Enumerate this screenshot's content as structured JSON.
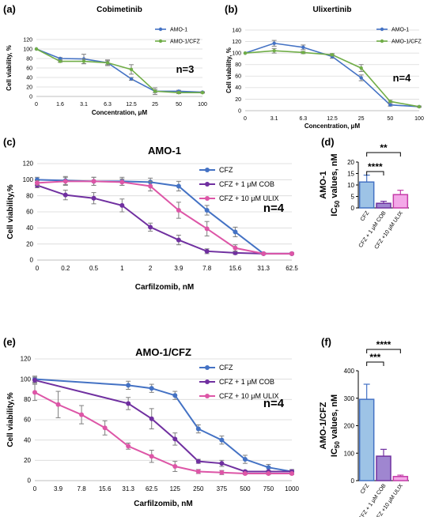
{
  "panels": [
    {
      "label": "(a)"
    },
    {
      "label": "(b)"
    },
    {
      "label": "(c)"
    },
    {
      "label": "(d)"
    },
    {
      "label": "(e)"
    },
    {
      "label": "(f)"
    }
  ],
  "chart_data": [
    {
      "type": "line",
      "title": "Cobimetinib",
      "xlabel": "Concentration, μM",
      "ylabel": "Cell viability, %",
      "categories": [
        "0",
        "1.6",
        "3.1",
        "6.3",
        "12.5",
        "25",
        "50",
        "100"
      ],
      "ylim": [
        0,
        120
      ],
      "yticks": [
        0,
        20,
        40,
        60,
        80,
        100,
        120
      ],
      "annotation": "n=3",
      "legend": "top-right",
      "series": [
        {
          "name": "AMO-1",
          "color": "#4472c4",
          "values": [
            100,
            80,
            79,
            71,
            37,
            11,
            11,
            9
          ],
          "err": [
            0,
            2,
            10,
            4,
            3,
            3,
            2,
            1
          ]
        },
        {
          "name": "AMO-1/CFZ",
          "color": "#70ad47",
          "values": [
            100,
            74,
            74,
            71,
            57,
            11,
            8,
            8
          ],
          "err": [
            0,
            2,
            5,
            6,
            10,
            7,
            2,
            1
          ]
        }
      ]
    },
    {
      "type": "line",
      "title": "Ulixertinib",
      "xlabel": "Concentration, μM",
      "ylabel": "Cell viability, %",
      "categories": [
        "0",
        "3.1",
        "6.3",
        "12.5",
        "25",
        "50",
        "100"
      ],
      "ylim": [
        0,
        140
      ],
      "yticks": [
        0,
        20,
        40,
        60,
        80,
        100,
        120,
        140
      ],
      "annotation": "n=4",
      "legend": "top-right",
      "series": [
        {
          "name": "AMO-1",
          "color": "#4472c4",
          "values": [
            100,
            117,
            110,
            94,
            57,
            10,
            7
          ],
          "err": [
            0,
            5,
            4,
            3,
            5,
            2,
            1
          ]
        },
        {
          "name": "AMO-1/CFZ",
          "color": "#70ad47",
          "values": [
            100,
            104,
            101,
            97,
            74,
            16,
            7
          ],
          "err": [
            0,
            4,
            2,
            2,
            6,
            2,
            1
          ]
        }
      ]
    },
    {
      "type": "line",
      "title": "AMO-1",
      "xlabel": "Carfilzomib, nM",
      "ylabel": "Cell viability,%",
      "categories": [
        "0",
        "0.2",
        "0.5",
        "1",
        "2",
        "3.9",
        "7.8",
        "15.6",
        "31.3",
        "62.5"
      ],
      "ylim": [
        0,
        120
      ],
      "yticks": [
        0,
        20,
        40,
        60,
        80,
        100,
        120
      ],
      "annotation": "n=4",
      "legend": "top-right",
      "series": [
        {
          "name": "CFZ",
          "color": "#4472c4",
          "values": [
            100,
            99,
            98,
            98,
            97,
            92,
            62,
            35,
            8,
            8
          ],
          "err": [
            3,
            5,
            5,
            5,
            5,
            6,
            6,
            6,
            1,
            1
          ]
        },
        {
          "name": "CFZ + 1 μM COB",
          "color": "#7030a0",
          "values": [
            93,
            81,
            77,
            68,
            41,
            25,
            11,
            9,
            8,
            8
          ],
          "err": [
            3,
            6,
            7,
            8,
            5,
            6,
            3,
            2,
            1,
            1
          ]
        },
        {
          "name": "CFZ + 10 μM ULIX",
          "color": "#dd56a7",
          "values": [
            96,
            98,
            98,
            97,
            92,
            62,
            39,
            15,
            8,
            8
          ],
          "err": [
            3,
            5,
            5,
            4,
            6,
            10,
            9,
            4,
            1,
            1
          ]
        }
      ]
    },
    {
      "type": "bar",
      "xlabel": "",
      "ylabel_line1": "AMO-1",
      "ylabel_line2": "IC",
      "ylabel_sub": "50",
      "ylabel_tail": " values, nM",
      "categories": [
        "CFZ",
        "CFZ + 1 μM COB",
        "CFZ +10 μM ULIX"
      ],
      "values": [
        11.3,
        2.0,
        5.8
      ],
      "err": [
        3.0,
        0.9,
        1.9
      ],
      "colors": [
        "#9dc3e6",
        "#9f86d0",
        "#f4a8e8"
      ],
      "borders": [
        "#4472c4",
        "#7030a0",
        "#c43ca8"
      ],
      "ylim": [
        0,
        20
      ],
      "yticks": [
        0,
        5,
        10,
        15,
        20
      ],
      "significance": [
        {
          "label": "****",
          "pair": [
            0,
            1
          ]
        },
        {
          "label": "**",
          "pair": [
            0,
            2
          ]
        }
      ]
    },
    {
      "type": "line",
      "title": "AMO-1/CFZ",
      "xlabel": "Carfilzomib, nM",
      "ylabel": "Cell viability,%",
      "categories": [
        "0",
        "3.9",
        "7.8",
        "15.6",
        "31.3",
        "62.5",
        "125",
        "250",
        "375",
        "500",
        "750",
        "1000"
      ],
      "ylim": [
        0,
        120
      ],
      "yticks": [
        0,
        20,
        40,
        60,
        80,
        100,
        120
      ],
      "annotation": "n=4",
      "legend": "top-right",
      "series": [
        {
          "name": "CFZ",
          "color": "#4472c4",
          "values": [
            100,
            null,
            null,
            null,
            94,
            91,
            84,
            51,
            40,
            21,
            13,
            9
          ],
          "err": [
            3,
            0,
            0,
            0,
            4,
            4,
            4,
            4,
            4,
            4,
            3,
            2
          ]
        },
        {
          "name": "CFZ + 1 μM COB",
          "color": "#7030a0",
          "values": [
            99,
            null,
            null,
            null,
            76,
            61,
            41,
            19,
            17,
            9,
            9,
            9
          ],
          "err": [
            3,
            0,
            0,
            0,
            6,
            10,
            6,
            2,
            3,
            1,
            1,
            1
          ]
        },
        {
          "name": "CFZ + 10 μM ULIX",
          "color": "#dd56a7",
          "values": [
            87,
            75,
            65,
            52,
            34,
            24,
            14,
            9,
            8,
            7,
            7,
            7
          ],
          "err": [
            8,
            13,
            9,
            7,
            3,
            6,
            5,
            2,
            2,
            1,
            1,
            1
          ]
        }
      ]
    },
    {
      "type": "bar",
      "xlabel": "",
      "ylabel_line1": "AMO-1/CFZ",
      "ylabel_line2": "IC",
      "ylabel_sub": "50",
      "ylabel_tail": " values, nM",
      "categories": [
        "CFZ",
        "CFZ + 1 μM COB",
        "CFZ +10 μM ULIX"
      ],
      "values": [
        296,
        89,
        15
      ],
      "err": [
        55,
        25,
        5
      ],
      "colors": [
        "#9dc3e6",
        "#9f86d0",
        "#f4a8e8"
      ],
      "borders": [
        "#4472c4",
        "#7030a0",
        "#c43ca8"
      ],
      "ylim": [
        0,
        400
      ],
      "yticks": [
        0,
        100,
        200,
        300,
        400
      ],
      "significance": [
        {
          "label": "***",
          "pair": [
            0,
            1
          ]
        },
        {
          "label": "****",
          "pair": [
            0,
            2
          ]
        }
      ]
    }
  ]
}
